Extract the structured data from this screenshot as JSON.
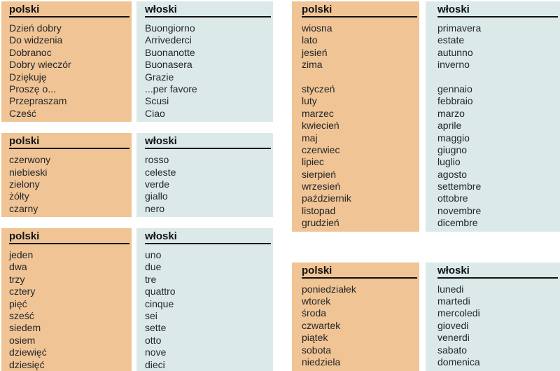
{
  "colors": {
    "polish_column_bg": "#F0C494",
    "italian_column_bg": "#DCE9E9",
    "header_underline": "#121212",
    "text": "#22262B",
    "page_bg": "#FFFFFF"
  },
  "headers": {
    "polish": "polski",
    "italian": "włoski"
  },
  "tables": [
    {
      "name": "greetings",
      "groups": [
        [
          [
            "Dzień dobry",
            "Buongiorno"
          ],
          [
            "Do widzenia",
            "Arrivederci"
          ],
          [
            "Dobranoc",
            "Buonanotte"
          ],
          [
            "Dobry wieczór",
            "Buonasera"
          ],
          [
            "Dziękuję",
            "Grazie"
          ],
          [
            "Proszę o...",
            "...per favore"
          ],
          [
            "Przepraszam",
            "Scusi"
          ],
          [
            "Cześć",
            "Ciao"
          ]
        ]
      ]
    },
    {
      "name": "colors",
      "groups": [
        [
          [
            "czerwony",
            "rosso"
          ],
          [
            "niebieski",
            "celeste"
          ],
          [
            "zielony",
            "verde"
          ],
          [
            "żółty",
            "giallo"
          ],
          [
            "czarny",
            "nero"
          ]
        ]
      ]
    },
    {
      "name": "numbers",
      "groups": [
        [
          [
            "jeden",
            "uno"
          ],
          [
            "dwa",
            "due"
          ],
          [
            "trzy",
            "tre"
          ],
          [
            "cztery",
            "quattro"
          ],
          [
            "pięć",
            "cinque"
          ],
          [
            "sześć",
            "sei"
          ],
          [
            "siedem",
            "sette"
          ],
          [
            "osiem",
            "otto"
          ],
          [
            "dziewięć",
            "nove"
          ],
          [
            "dziesięć",
            "dieci"
          ]
        ]
      ]
    },
    {
      "name": "seasons-and-months",
      "groups": [
        [
          [
            "wiosna",
            "primavera"
          ],
          [
            "lato",
            "estate"
          ],
          [
            "jesień",
            "autunno"
          ],
          [
            "zima",
            "inverno"
          ]
        ],
        [
          [
            "styczeń",
            "gennaio"
          ],
          [
            "luty",
            "febbraio"
          ],
          [
            "marzec",
            "marzo"
          ],
          [
            "kwiecień",
            "aprile"
          ],
          [
            "maj",
            "maggio"
          ],
          [
            "czerwiec",
            "giugno"
          ],
          [
            "lipiec",
            "luglio"
          ],
          [
            "sierpień",
            "agosto"
          ],
          [
            "wrzesień",
            "settembre"
          ],
          [
            "październik",
            "ottobre"
          ],
          [
            "listopad",
            "novembre"
          ],
          [
            "grudzień",
            "dicembre"
          ]
        ]
      ]
    },
    {
      "name": "days-of-week",
      "groups": [
        [
          [
            "poniedziałek",
            "lunedi"
          ],
          [
            "wtorek",
            "martedi"
          ],
          [
            "środa",
            "mercoledi"
          ],
          [
            "czwartek",
            "giovedi"
          ],
          [
            "piątek",
            "venerdi"
          ],
          [
            "sobota",
            "sabato"
          ],
          [
            "niedziela",
            "domenica"
          ]
        ]
      ]
    }
  ]
}
